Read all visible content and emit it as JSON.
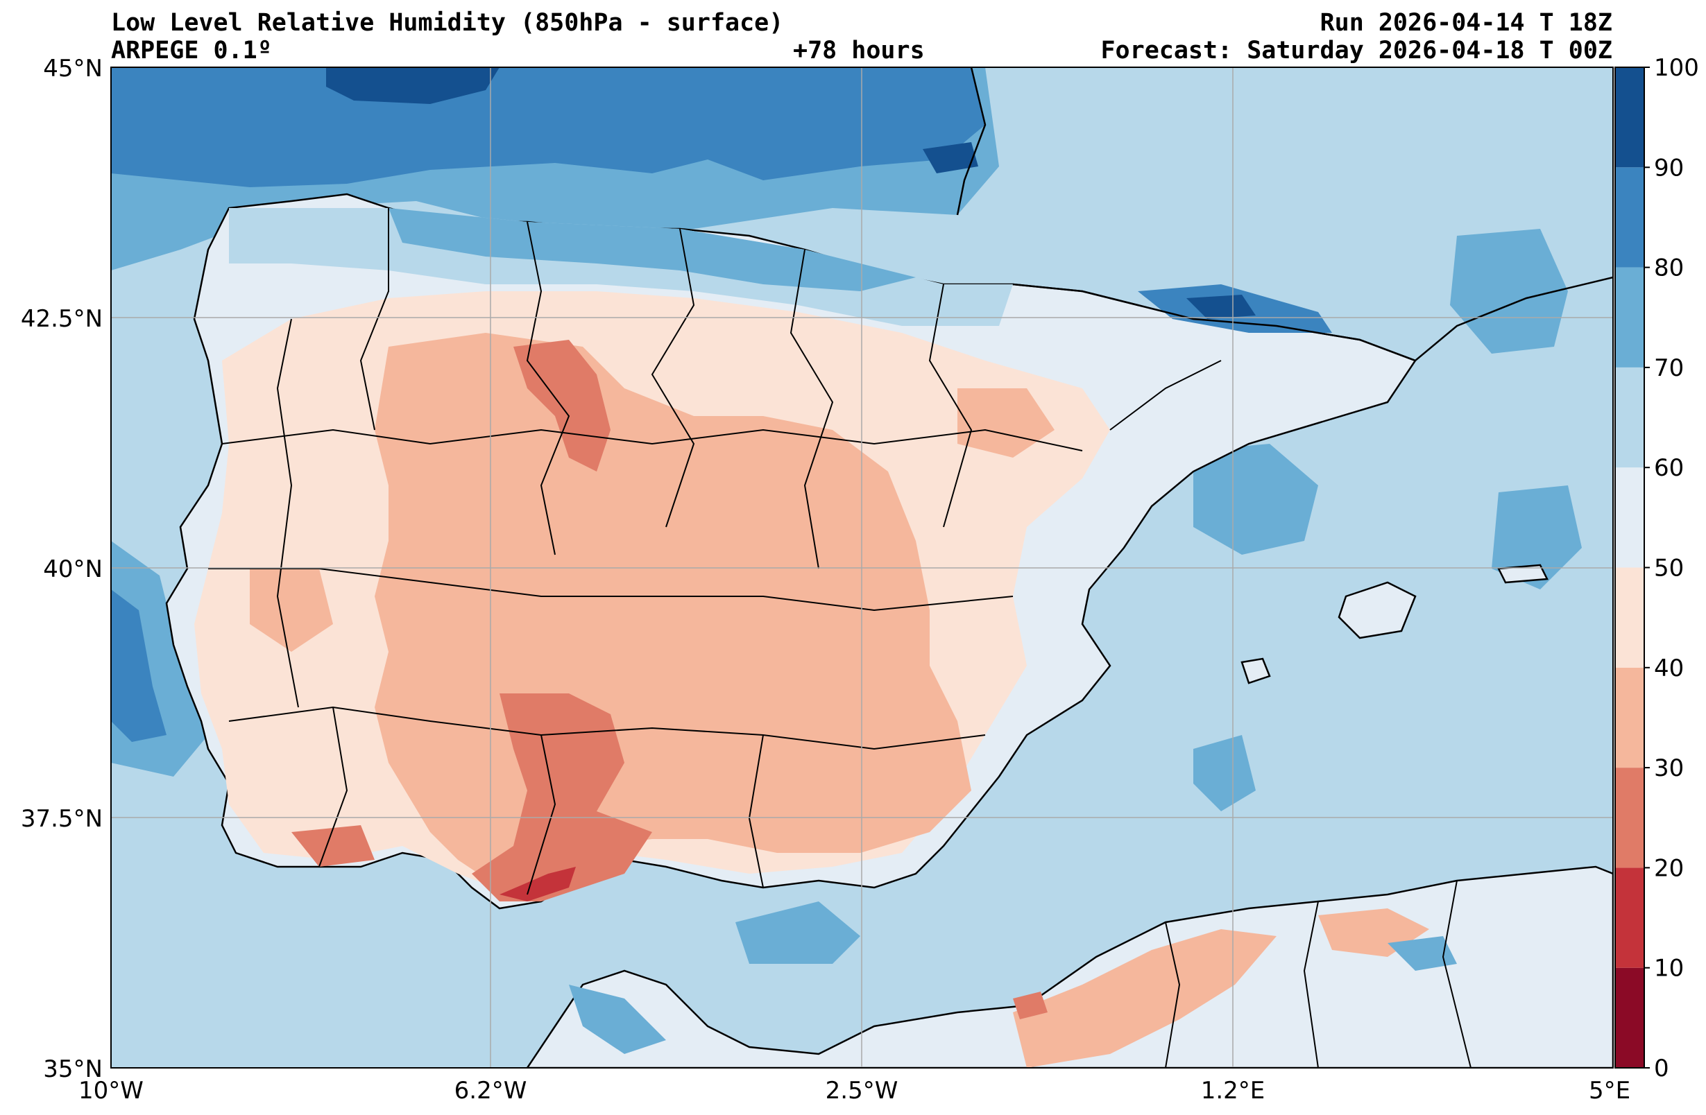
{
  "header": {
    "title_left": "Low Level Relative Humidity (850hPa - surface)",
    "model": "ARPEGE 0.1º",
    "lead_time": "+78 hours",
    "run": "Run 2026-04-14 T 18Z",
    "forecast": "Forecast: Saturday 2026-04-18 T 00Z"
  },
  "axes": {
    "lat_labels": [
      "45°N",
      "42.5°N",
      "40°N",
      "37.5°N",
      "35°N"
    ],
    "lon_labels": [
      "10°W",
      "6.2°W",
      "2.5°W",
      "1.2°E",
      "5°E"
    ]
  },
  "colorbar": {
    "labels": [
      "0",
      "10",
      "20",
      "30",
      "40",
      "50",
      "60",
      "70",
      "80",
      "90",
      "100"
    ],
    "colors": [
      "#8b0a26",
      "#c4333a",
      "#e07b67",
      "#f5b79c",
      "#fbe3d6",
      "#e4edf5",
      "#b7d8ea",
      "#6aaed5",
      "#3b84bf",
      "#14508f"
    ]
  },
  "map": {
    "ocean_color": "#b7d8ea",
    "land_color": "#e4edf5",
    "border_color": "#000000",
    "grid_color": "#aaaaaa"
  }
}
